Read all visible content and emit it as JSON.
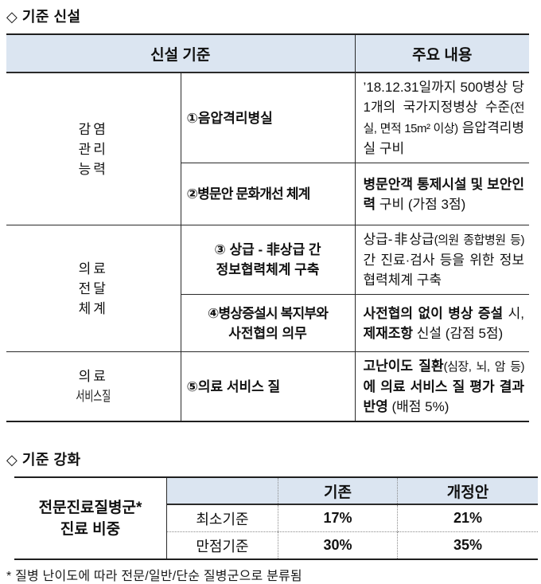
{
  "colors": {
    "header_bg": "#dbe5f1",
    "border_dark": "#1f1f1f",
    "border_inner": "#2a2a2a",
    "border_dotted": "#8a8a8a",
    "text": "#111111"
  },
  "section1": {
    "title": "◇ 기준 신설",
    "table": {
      "header": {
        "col_criteria": "신설 기준",
        "col_content": "주요 내용"
      },
      "rows": [
        {
          "group_lines": [
            "감염",
            "관리",
            "능력"
          ],
          "label_lines": [
            "①음압격리병실"
          ],
          "content": [
            {
              "t": "’18.12.31일까지 500병상 당 1개의 국가지정병상 수준",
              "b": false
            },
            {
              "t": "(전실, 면적 15m² 이상)",
              "b": false,
              "s": true
            },
            {
              "t": " 음압격리병실 구비",
              "b": false
            }
          ]
        },
        {
          "label_lines": [
            "②병문안 문화개선 체계"
          ],
          "content": [
            {
              "t": "병문안객 통제시설 및 보안인력",
              "b": true
            },
            {
              "t": " 구비 (가점 3점)",
              "b": false
            }
          ]
        },
        {
          "group_lines": [
            "의료",
            "전달",
            "체계"
          ],
          "label_lines": [
            "③ 상급 - 非상급 간",
            "정보협력체계 구축"
          ],
          "content": [
            {
              "t": "상급-非상급",
              "b": false
            },
            {
              "t": "(의원 종합병원 등)",
              "b": false,
              "s": true
            },
            {
              "t": " 간 진료·검사 등을 위한 정보협력체계 구축",
              "b": false
            }
          ]
        },
        {
          "label_lines": [
            "④병상증설시 복지부와",
            "사전협의 의무"
          ],
          "content": [
            {
              "t": "사전협의 없이 병상 증설",
              "b": true
            },
            {
              "t": " 시, ",
              "b": false
            },
            {
              "t": "제재조항",
              "b": true
            },
            {
              "t": " 신설 (감점 5점)",
              "b": false
            }
          ]
        },
        {
          "group_lines": [
            "의료",
            "서비스질"
          ],
          "label_lines": [
            "⑤의료 서비스 질"
          ],
          "content": [
            {
              "t": "고난이도 질환",
              "b": true
            },
            {
              "t": "(심장, 뇌, 암 등)",
              "b": false,
              "s": true
            },
            {
              "t": "에 의료 서비스 질 평가 결과 반영",
              "b": true
            },
            {
              "t": " (배점 5%)",
              "b": false
            }
          ]
        }
      ]
    }
  },
  "section2": {
    "title": "◇ 기준 강화",
    "table": {
      "group_label_lines": [
        "전문진료질병군*",
        "진료 비중"
      ],
      "col_headers": [
        "기존",
        "개정안"
      ],
      "rows": [
        {
          "criterion": "최소기준",
          "existing": "17%",
          "revised": "21%"
        },
        {
          "criterion": "만점기준",
          "existing": "30%",
          "revised": "35%"
        }
      ]
    }
  },
  "footnote": "* 질병 난이도에 따라 전문/일반/단순 질병군으로 분류됨"
}
